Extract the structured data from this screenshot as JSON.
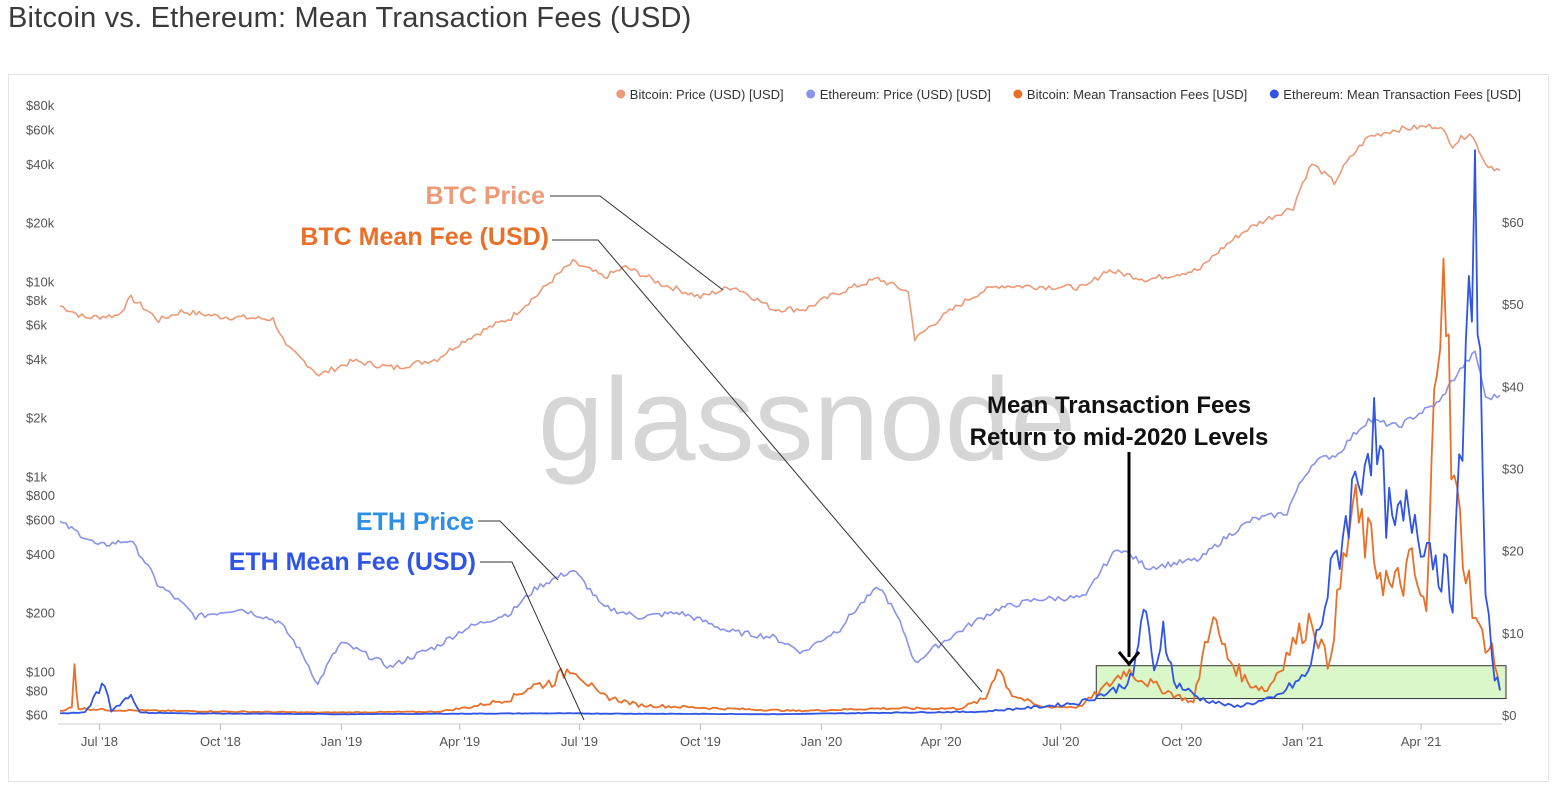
{
  "page": {
    "title": "Bitcoin vs. Ethereum: Mean Transaction Fees (USD)"
  },
  "watermark": "glassnode",
  "colors": {
    "btc_price": "#ec9a78",
    "eth_price": "#8a93ea",
    "btc_fee": "#e8702a",
    "eth_fee": "#2f54e6",
    "highlight_fill": "#d9f7c8",
    "highlight_stroke": "#333333"
  },
  "legend": [
    {
      "key": "btc_price",
      "label": "Bitcoin: Price (USD) [USD]"
    },
    {
      "key": "eth_price",
      "label": "Ethereum: Price (USD) [USD]"
    },
    {
      "key": "btc_fee",
      "label": "Bitcoin: Mean Transaction Fees [USD]"
    },
    {
      "key": "eth_fee",
      "label": "Ethereum: Mean Transaction Fees [USD]"
    }
  ],
  "annotations": {
    "btc_price": "BTC Price",
    "btc_fee": "BTC Mean Fee (USD)",
    "eth_price": "ETH Price",
    "eth_fee": "ETH Mean Fee (USD)",
    "note_line1": "Mean Transaction Fees",
    "note_line2": "Return to mid-2020 Levels"
  },
  "chart_data": {
    "type": "line",
    "title": "Bitcoin vs. Ethereum: Mean Transaction Fees (USD)",
    "x_tick_labels": [
      "Jul '18",
      "Oct '18",
      "Jan '19",
      "Apr '19",
      "Jul '19",
      "Oct '19",
      "Jan '20",
      "Apr '20",
      "Jul '20",
      "Oct '20",
      "Jan '21",
      "Apr '21"
    ],
    "x_tick_dates": [
      "2018-07-01",
      "2018-10-01",
      "2019-01-01",
      "2019-04-01",
      "2019-07-01",
      "2019-10-01",
      "2020-01-01",
      "2020-04-01",
      "2020-07-01",
      "2020-10-01",
      "2021-01-01",
      "2021-04-01"
    ],
    "x_range": [
      "2018-06-01",
      "2021-05-31"
    ],
    "left_axis": {
      "scale": "log",
      "range": [
        55,
        85000
      ],
      "tick_values": [
        80000,
        60000,
        40000,
        20000,
        10000,
        8000,
        6000,
        4000,
        2000,
        1000,
        800,
        600,
        400,
        200,
        100,
        80,
        60
      ],
      "tick_labels": [
        "$80k",
        "$60k",
        "$40k",
        "$20k",
        "$10k",
        "$8k",
        "$6k",
        "$4k",
        "$2k",
        "$1k",
        "$800",
        "$600",
        "$400",
        "$200",
        "$100",
        "$80",
        "$60"
      ]
    },
    "right_axis": {
      "scale": "linear",
      "range": [
        0,
        65
      ],
      "tick_values": [
        0,
        10,
        20,
        30,
        40,
        50,
        60
      ],
      "tick_labels": [
        "$0",
        "$10",
        "$20",
        "$30",
        "$40",
        "$50",
        "$60"
      ]
    },
    "grid": false,
    "legend_position": "top-right",
    "highlight_band": {
      "x": [
        "2020-07-28",
        "2021-05-31"
      ],
      "y": [
        2,
        6
      ]
    },
    "series": [
      {
        "name": "Bitcoin: Price (USD) [USD]",
        "color_key": "btc_price",
        "axis": "left",
        "points": [
          [
            "2018-06-01",
            7500
          ],
          [
            "2018-06-20",
            6500
          ],
          [
            "2018-07-15",
            6700
          ],
          [
            "2018-07-25",
            8200
          ],
          [
            "2018-08-15",
            6300
          ],
          [
            "2018-09-01",
            7000
          ],
          [
            "2018-10-01",
            6600
          ],
          [
            "2018-11-10",
            6400
          ],
          [
            "2018-11-20",
            4600
          ],
          [
            "2018-12-15",
            3300
          ],
          [
            "2019-01-10",
            3900
          ],
          [
            "2019-02-10",
            3600
          ],
          [
            "2019-03-15",
            4000
          ],
          [
            "2019-04-05",
            5000
          ],
          [
            "2019-05-10",
            6500
          ],
          [
            "2019-05-30",
            8500
          ],
          [
            "2019-06-26",
            12500
          ],
          [
            "2019-07-20",
            10500
          ],
          [
            "2019-08-05",
            11800
          ],
          [
            "2019-09-01",
            9700
          ],
          [
            "2019-10-01",
            8300
          ],
          [
            "2019-10-26",
            9400
          ],
          [
            "2019-11-25",
            7200
          ],
          [
            "2019-12-20",
            7200
          ],
          [
            "2020-01-15",
            8800
          ],
          [
            "2020-02-13",
            10300
          ],
          [
            "2020-03-07",
            8800
          ],
          [
            "2020-03-12",
            5000
          ],
          [
            "2020-04-05",
            6800
          ],
          [
            "2020-05-01",
            8800
          ],
          [
            "2020-05-15",
            9500
          ],
          [
            "2020-06-15",
            9400
          ],
          [
            "2020-07-20",
            9300
          ],
          [
            "2020-08-05",
            11400
          ],
          [
            "2020-09-05",
            10200
          ],
          [
            "2020-10-15",
            11500
          ],
          [
            "2020-11-20",
            18500
          ],
          [
            "2020-12-25",
            24000
          ],
          [
            "2021-01-08",
            40000
          ],
          [
            "2021-01-25",
            32000
          ],
          [
            "2021-02-20",
            55000
          ],
          [
            "2021-03-13",
            60000
          ],
          [
            "2021-04-14",
            63000
          ],
          [
            "2021-04-25",
            50000
          ],
          [
            "2021-05-08",
            58000
          ],
          [
            "2021-05-20",
            40000
          ],
          [
            "2021-05-31",
            37000
          ]
        ]
      },
      {
        "name": "Ethereum: Price (USD) [USD]",
        "color_key": "eth_price",
        "axis": "left",
        "points": [
          [
            "2018-06-01",
            580
          ],
          [
            "2018-06-30",
            440
          ],
          [
            "2018-07-24",
            470
          ],
          [
            "2018-08-14",
            280
          ],
          [
            "2018-09-12",
            190
          ],
          [
            "2018-10-15",
            210
          ],
          [
            "2018-11-14",
            180
          ],
          [
            "2018-12-14",
            85
          ],
          [
            "2019-01-01",
            140
          ],
          [
            "2019-02-07",
            105
          ],
          [
            "2019-03-15",
            135
          ],
          [
            "2019-04-05",
            165
          ],
          [
            "2019-05-10",
            200
          ],
          [
            "2019-05-30",
            270
          ],
          [
            "2019-06-26",
            330
          ],
          [
            "2019-07-18",
            215
          ],
          [
            "2019-08-15",
            190
          ],
          [
            "2019-09-15",
            200
          ],
          [
            "2019-10-23",
            160
          ],
          [
            "2019-11-25",
            150
          ],
          [
            "2019-12-18",
            125
          ],
          [
            "2020-01-15",
            165
          ],
          [
            "2020-02-14",
            270
          ],
          [
            "2020-03-12",
            110
          ],
          [
            "2020-04-15",
            160
          ],
          [
            "2020-05-15",
            210
          ],
          [
            "2020-06-15",
            235
          ],
          [
            "2020-07-20",
            240
          ],
          [
            "2020-08-14",
            430
          ],
          [
            "2020-09-05",
            340
          ],
          [
            "2020-10-15",
            375
          ],
          [
            "2020-11-24",
            600
          ],
          [
            "2020-12-20",
            650
          ],
          [
            "2021-01-10",
            1200
          ],
          [
            "2021-01-28",
            1300
          ],
          [
            "2021-02-20",
            1950
          ],
          [
            "2021-03-15",
            1800
          ],
          [
            "2021-04-15",
            2400
          ],
          [
            "2021-05-12",
            4300
          ],
          [
            "2021-05-20",
            2500
          ],
          [
            "2021-05-31",
            2600
          ]
        ]
      },
      {
        "name": "Bitcoin: Mean Transaction Fees [USD]",
        "color_key": "btc_fee",
        "axis": "right",
        "points": [
          [
            "2018-06-01",
            0.5
          ],
          [
            "2018-06-10",
            0.9
          ],
          [
            "2018-06-12",
            6.0
          ],
          [
            "2018-06-15",
            0.8
          ],
          [
            "2018-07-10",
            0.6
          ],
          [
            "2018-08-20",
            0.5
          ],
          [
            "2018-12-15",
            0.3
          ],
          [
            "2019-03-15",
            0.4
          ],
          [
            "2019-04-10",
            1.0
          ],
          [
            "2019-05-10",
            2.0
          ],
          [
            "2019-05-25",
            3.5
          ],
          [
            "2019-06-10",
            4.0
          ],
          [
            "2019-06-26",
            6.0
          ],
          [
            "2019-07-15",
            2.5
          ],
          [
            "2019-08-15",
            1.2
          ],
          [
            "2019-10-15",
            0.8
          ],
          [
            "2019-12-15",
            0.5
          ],
          [
            "2020-02-15",
            0.8
          ],
          [
            "2020-04-15",
            0.8
          ],
          [
            "2020-05-05",
            2.0
          ],
          [
            "2020-05-14",
            6.0
          ],
          [
            "2020-05-25",
            2.5
          ],
          [
            "2020-06-15",
            1.0
          ],
          [
            "2020-07-15",
            1.0
          ],
          [
            "2020-08-05",
            3.5
          ],
          [
            "2020-08-20",
            5.5
          ],
          [
            "2020-09-05",
            4.0
          ],
          [
            "2020-09-25",
            2.5
          ],
          [
            "2020-10-10",
            1.5
          ],
          [
            "2020-10-23",
            12.0
          ],
          [
            "2020-11-05",
            7.0
          ],
          [
            "2020-11-20",
            4.0
          ],
          [
            "2020-12-05",
            3.0
          ],
          [
            "2020-12-22",
            8.0
          ],
          [
            "2021-01-08",
            12.0
          ],
          [
            "2021-01-20",
            6.0
          ],
          [
            "2021-02-08",
            25.0
          ],
          [
            "2021-02-22",
            20.0
          ],
          [
            "2021-03-10",
            15.0
          ],
          [
            "2021-03-25",
            18.0
          ],
          [
            "2021-04-05",
            12.0
          ],
          [
            "2021-04-13",
            45.0
          ],
          [
            "2021-04-18",
            63.0
          ],
          [
            "2021-04-24",
            30.0
          ],
          [
            "2021-05-05",
            18.0
          ],
          [
            "2021-05-15",
            10.0
          ],
          [
            "2021-05-25",
            8.0
          ],
          [
            "2021-05-31",
            3.0
          ]
        ]
      },
      {
        "name": "Ethereum: Mean Transaction Fees [USD]",
        "color_key": "eth_fee",
        "axis": "right",
        "points": [
          [
            "2018-06-01",
            0.2
          ],
          [
            "2018-06-20",
            0.3
          ],
          [
            "2018-07-05",
            4.0
          ],
          [
            "2018-07-10",
            0.5
          ],
          [
            "2018-07-25",
            2.5
          ],
          [
            "2018-08-01",
            0.3
          ],
          [
            "2018-09-01",
            0.2
          ],
          [
            "2019-01-01",
            0.1
          ],
          [
            "2019-06-01",
            0.2
          ],
          [
            "2019-12-01",
            0.1
          ],
          [
            "2020-03-01",
            0.3
          ],
          [
            "2020-05-01",
            0.4
          ],
          [
            "2020-06-15",
            1.0
          ],
          [
            "2020-07-15",
            1.5
          ],
          [
            "2020-08-10",
            3.0
          ],
          [
            "2020-08-25",
            4.5
          ],
          [
            "2020-09-02",
            13.5
          ],
          [
            "2020-09-10",
            5.0
          ],
          [
            "2020-09-17",
            11.0
          ],
          [
            "2020-09-25",
            4.0
          ],
          [
            "2020-10-15",
            2.0
          ],
          [
            "2020-11-10",
            1.0
          ],
          [
            "2020-12-10",
            2.0
          ],
          [
            "2021-01-05",
            5.0
          ],
          [
            "2021-01-20",
            15.0
          ],
          [
            "2021-02-05",
            25.0
          ],
          [
            "2021-02-22",
            35.0
          ],
          [
            "2021-03-10",
            22.0
          ],
          [
            "2021-03-25",
            25.0
          ],
          [
            "2021-04-10",
            20.0
          ],
          [
            "2021-04-25",
            15.0
          ],
          [
            "2021-05-05",
            40.0
          ],
          [
            "2021-05-12",
            65.0
          ],
          [
            "2021-05-20",
            15.0
          ],
          [
            "2021-05-25",
            6.0
          ],
          [
            "2021-05-31",
            3.0
          ]
        ]
      }
    ]
  }
}
